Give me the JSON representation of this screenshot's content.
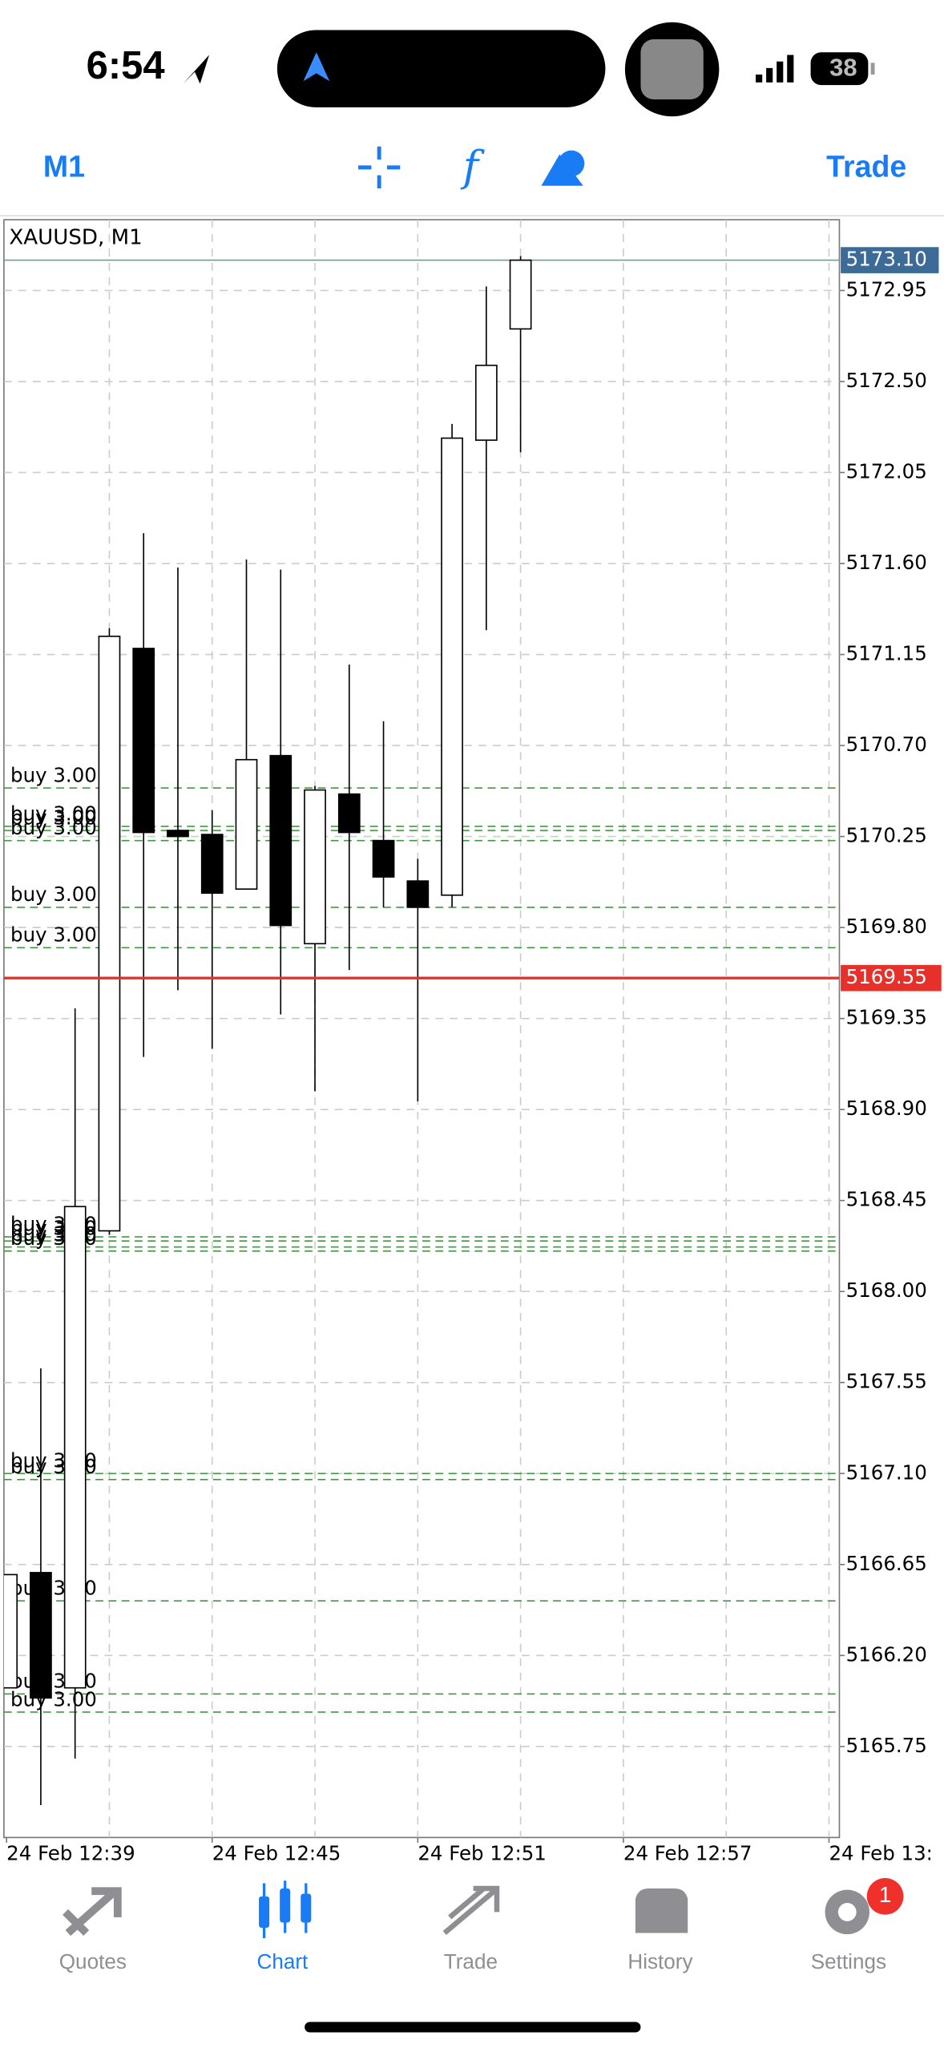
{
  "status_bar": {
    "time": "6:54",
    "battery": "38"
  },
  "toolbar": {
    "timeframe": "M1",
    "trade": "Trade"
  },
  "chart_data": {
    "type": "candlestick",
    "title": "XAUUSD, M1",
    "x": [
      "24 Feb 12:39",
      "24 Feb 12:40",
      "24 Feb 12:41",
      "24 Feb 12:42",
      "24 Feb 12:43",
      "24 Feb 12:44",
      "24 Feb 12:45",
      "24 Feb 12:46",
      "24 Feb 12:47",
      "24 Feb 12:48",
      "24 Feb 12:49",
      "24 Feb 12:50",
      "24 Feb 12:51",
      "24 Feb 12:52",
      "24 Feb 12:53",
      "24 Feb 12:54"
    ],
    "open": [
      5166.04,
      5166.61,
      5166.04,
      5168.3,
      5171.18,
      5170.28,
      5170.26,
      5169.99,
      5170.65,
      5169.72,
      5170.46,
      5170.23,
      5170.03,
      5169.96,
      5172.21,
      5172.76
    ],
    "high": [
      5166.6,
      5167.62,
      5169.4,
      5171.28,
      5171.75,
      5171.58,
      5170.38,
      5171.62,
      5171.57,
      5170.5,
      5171.1,
      5170.82,
      5170.14,
      5172.29,
      5172.97,
      5173.12
    ],
    "low": [
      5166.04,
      5165.46,
      5165.69,
      5168.28,
      5169.16,
      5169.49,
      5169.2,
      5169.99,
      5169.37,
      5168.99,
      5169.59,
      5169.9,
      5168.94,
      5169.9,
      5171.27,
      5172.15
    ],
    "close": [
      5166.6,
      5165.99,
      5168.42,
      5171.24,
      5170.27,
      5170.25,
      5169.97,
      5170.63,
      5169.81,
      5170.48,
      5170.27,
      5170.05,
      5169.9,
      5172.22,
      5172.58,
      5173.1
    ],
    "up_color": "#ffffff",
    "down_color": "#000000",
    "ylim": [
      5165.3,
      5173.3
    ],
    "yticks": [
      5172.95,
      {
        "value": 5172.5,
        "label": "5172.50"
      },
      5172.05,
      {
        "value": 5171.6,
        "label": "5171.60"
      },
      5171.15,
      {
        "value": 5170.7,
        "label": "5170.70"
      },
      5170.25,
      {
        "value": 5169.8,
        "label": "5169.80"
      },
      5169.35,
      {
        "value": 5168.9,
        "label": "5168.90"
      },
      5168.45,
      {
        "value": 5168,
        "label": "5168.00"
      },
      5167.55,
      {
        "value": 5167.1,
        "label": "5167.10"
      },
      5166.65,
      {
        "value": 5166.2,
        "label": "5166.20"
      },
      5165.75
    ],
    "xticks": [
      "24 Feb 12:39",
      "24 Feb 12:45",
      "24 Feb 12:51",
      "24 Feb 12:57",
      "24 Feb 13:"
    ],
    "grid": true,
    "last_price": {
      "value": 5173.1,
      "label": "5173.10",
      "color": "#3d6b98"
    },
    "bid_line": {
      "value": 5169.55,
      "label": "5169.55",
      "color": "#e8302a"
    },
    "order_color": "#3f9a3f",
    "orders": [
      {
        "label": "buy 3.00",
        "price": 5170.49
      },
      {
        "label": "buy 3.00",
        "price": 5170.3
      },
      {
        "label": "buy 3.00",
        "price": 5170.28
      },
      {
        "label": "buy 3.00",
        "price": 5170.23
      },
      {
        "label": "buy 3.00",
        "price": 5169.9
      },
      {
        "label": "buy 3.00",
        "price": 5169.7
      },
      {
        "label": "buy 3.00",
        "price": 5168.27
      },
      {
        "label": "buy 3.00",
        "price": 5168.25
      },
      {
        "label": "buy 3.00",
        "price": 5168.22
      },
      {
        "label": "buy 3.00",
        "price": 5168.2
      },
      {
        "label": "buy 3.00",
        "price": 5167.1
      },
      {
        "label": "buy 3.00",
        "price": 5167.07
      },
      {
        "label": "buy 3.00",
        "price": 5166.47
      },
      {
        "label": "buy 3.00",
        "price": 5166.01
      },
      {
        "label": "buy 3.00",
        "price": 5165.92
      }
    ]
  },
  "tab_bar": {
    "tabs": [
      {
        "label": "Quotes"
      },
      {
        "label": "Chart"
      },
      {
        "label": "Trade"
      },
      {
        "label": "History"
      },
      {
        "label": "Settings"
      }
    ],
    "active": 1,
    "badge": "1"
  }
}
